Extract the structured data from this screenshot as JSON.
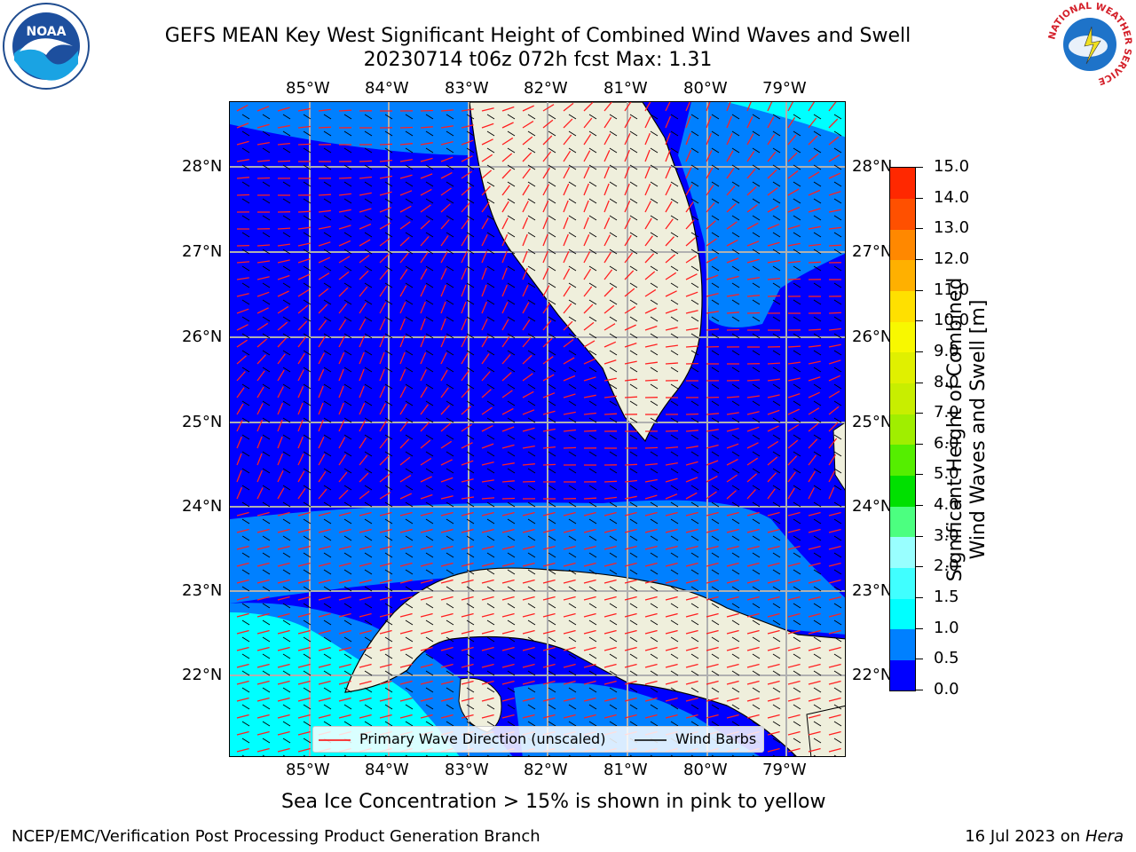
{
  "title": {
    "line1": "GEFS MEAN Key West Significant Height of Combined Wind Waves and Swell",
    "line2": "20230714 t06z 072h fcst   Max: 1.31"
  },
  "map": {
    "lon_labels": [
      "85°W",
      "84°W",
      "83°W",
      "82°W",
      "81°W",
      "80°W",
      "79°W"
    ],
    "lat_labels": [
      "28°N",
      "27°N",
      "26°N",
      "25°N",
      "24°N",
      "23°N",
      "22°N"
    ],
    "colors": {
      "land": "#efefdc",
      "coast": "#000000",
      "grid": "#b0b0b0"
    }
  },
  "legend": {
    "wave_label": "Primary Wave Direction (unscaled)",
    "barb_label": "Wind Barbs"
  },
  "colorbar": {
    "label_line1": "Significant Height of Combined",
    "label_line2": "Wind Waves and Swell [m]",
    "ticks": [
      "0.0",
      "0.5",
      "1.0",
      "1.5",
      "2.0",
      "3.0",
      "4.0",
      "5.0",
      "6.0",
      "7.0",
      "8.0",
      "9.0",
      "10.0",
      "11.0",
      "12.0",
      "13.0",
      "14.0",
      "15.0"
    ],
    "colors": [
      "#0000ff",
      "#0080ff",
      "#00ffff",
      "#40ffff",
      "#99ffff",
      "#4cff80",
      "#00e000",
      "#55ee00",
      "#a0ee00",
      "#c8ee00",
      "#e0f000",
      "#f8f800",
      "#ffe000",
      "#ffb000",
      "#ff8800",
      "#ff5000",
      "#ff2800"
    ]
  },
  "note": "Sea Ice Concentration > 15% is shown in pink to yellow",
  "footer": {
    "left": "NCEP/EMC/Verification Post Processing Product Generation Branch",
    "date": "16 Jul 2023 on ",
    "machine": "Hera"
  },
  "logos": {
    "noaa_text": "NOAA",
    "nws_text": "NATIONAL WEATHER SERVICE"
  }
}
